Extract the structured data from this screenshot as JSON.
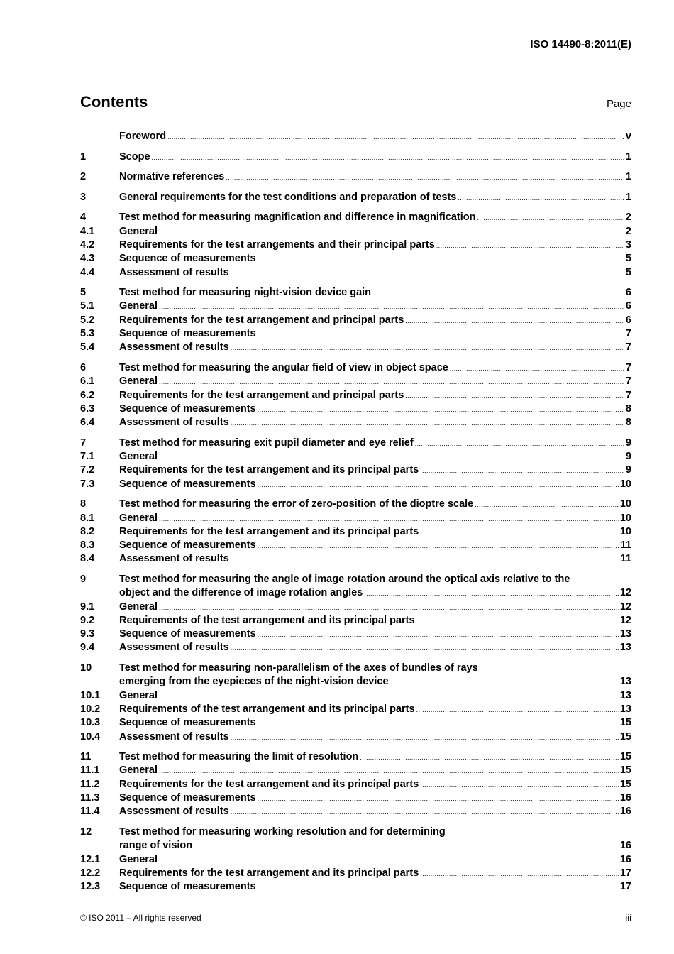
{
  "header": {
    "doc_id": "ISO 14490-8:2011(E)"
  },
  "contents": {
    "title": "Contents",
    "page_label": "Page"
  },
  "toc": [
    [
      {
        "num": "",
        "title": "Foreword",
        "page": "v"
      }
    ],
    [
      {
        "num": "1",
        "title": "Scope",
        "page": "1"
      }
    ],
    [
      {
        "num": "2",
        "title": "Normative references",
        "page": "1"
      }
    ],
    [
      {
        "num": "3",
        "title": "General requirements for the test conditions and preparation of tests",
        "page": "1"
      }
    ],
    [
      {
        "num": "4",
        "title": "Test method for measuring magnification and difference in magnification",
        "page": "2"
      },
      {
        "num": "4.1",
        "title": "General",
        "page": "2"
      },
      {
        "num": "4.2",
        "title": "Requirements for the test arrangements and their principal parts",
        "page": "3"
      },
      {
        "num": "4.3",
        "title": "Sequence of measurements",
        "page": "5"
      },
      {
        "num": "4.4",
        "title": "Assessment of results",
        "page": "5"
      }
    ],
    [
      {
        "num": "5",
        "title": "Test method for measuring night-vision device gain",
        "page": "6"
      },
      {
        "num": "5.1",
        "title": "General",
        "page": "6"
      },
      {
        "num": "5.2",
        "title": "Requirements for the test arrangement and principal parts",
        "page": "6"
      },
      {
        "num": "5.3",
        "title": "Sequence of measurements",
        "page": "7"
      },
      {
        "num": "5.4",
        "title": "Assessment of results",
        "page": "7"
      }
    ],
    [
      {
        "num": "6",
        "title": "Test method for measuring the angular field of view in object space",
        "page": "7"
      },
      {
        "num": "6.1",
        "title": "General",
        "page": "7"
      },
      {
        "num": "6.2",
        "title": "Requirements for the test arrangement and principal parts",
        "page": "7"
      },
      {
        "num": "6.3",
        "title": "Sequence of measurements",
        "page": "8"
      },
      {
        "num": "6.4",
        "title": "Assessment of results",
        "page": "8"
      }
    ],
    [
      {
        "num": "7",
        "title": "Test method for measuring exit pupil diameter and eye relief",
        "page": "9"
      },
      {
        "num": "7.1",
        "title": "General",
        "page": "9"
      },
      {
        "num": "7.2",
        "title": "Requirements for the test arrangement and its principal parts",
        "page": "9"
      },
      {
        "num": "7.3",
        "title": "Sequence of measurements",
        "page": "10"
      }
    ],
    [
      {
        "num": "8",
        "title": "Test method for measuring the error of zero-position of the dioptre scale",
        "page": "10"
      },
      {
        "num": "8.1",
        "title": "General",
        "page": "10"
      },
      {
        "num": "8.2",
        "title": "Requirements for the test arrangement and its principal parts",
        "page": "10"
      },
      {
        "num": "8.3",
        "title": "Sequence of measurements",
        "page": "11"
      },
      {
        "num": "8.4",
        "title": "Assessment of results",
        "page": "11"
      }
    ],
    [
      {
        "num": "9",
        "title_line1": "Test method for measuring the angle of image rotation around the optical axis relative to the",
        "title": "object and the difference of image rotation angles",
        "page": "12"
      },
      {
        "num": "9.1",
        "title": "General",
        "page": "12"
      },
      {
        "num": "9.2",
        "title": "Requirements of the test arrangement and its principal parts",
        "page": "12"
      },
      {
        "num": "9.3",
        "title": "Sequence of measurements",
        "page": "13"
      },
      {
        "num": "9.4",
        "title": "Assessment of results",
        "page": "13"
      }
    ],
    [
      {
        "num": "10",
        "title_line1": "Test method for measuring non-parallelism of the axes of bundles of rays",
        "title": "emerging from the eyepieces of the night-vision device",
        "page": "13"
      },
      {
        "num": "10.1",
        "title": "General",
        "page": "13"
      },
      {
        "num": "10.2",
        "title": "Requirements of the test arrangement and its principal parts",
        "page": "13"
      },
      {
        "num": "10.3",
        "title": "Sequence of measurements",
        "page": "15"
      },
      {
        "num": "10.4",
        "title": "Assessment of results",
        "page": "15"
      }
    ],
    [
      {
        "num": "11",
        "title": "Test method for measuring the limit of resolution",
        "page": "15"
      },
      {
        "num": "11.1",
        "title": "General",
        "page": "15"
      },
      {
        "num": "11.2",
        "title": "Requirements for the test arrangement and its principal parts",
        "page": "15"
      },
      {
        "num": "11.3",
        "title": "Sequence of measurements",
        "page": "16"
      },
      {
        "num": "11.4",
        "title": "Assessment of results",
        "page": "16"
      }
    ],
    [
      {
        "num": "12",
        "title_line1": "Test method for measuring working resolution and for determining",
        "title": "range of vision",
        "page": "16"
      },
      {
        "num": "12.1",
        "title": "General",
        "page": "16"
      },
      {
        "num": "12.2",
        "title": "Requirements for the test arrangement and its principal parts",
        "page": "17"
      },
      {
        "num": "12.3",
        "title": "Sequence of measurements",
        "page": "17"
      }
    ]
  ],
  "footer": {
    "copyright": "© ISO 2011 – All rights reserved",
    "page_number": "iii"
  }
}
